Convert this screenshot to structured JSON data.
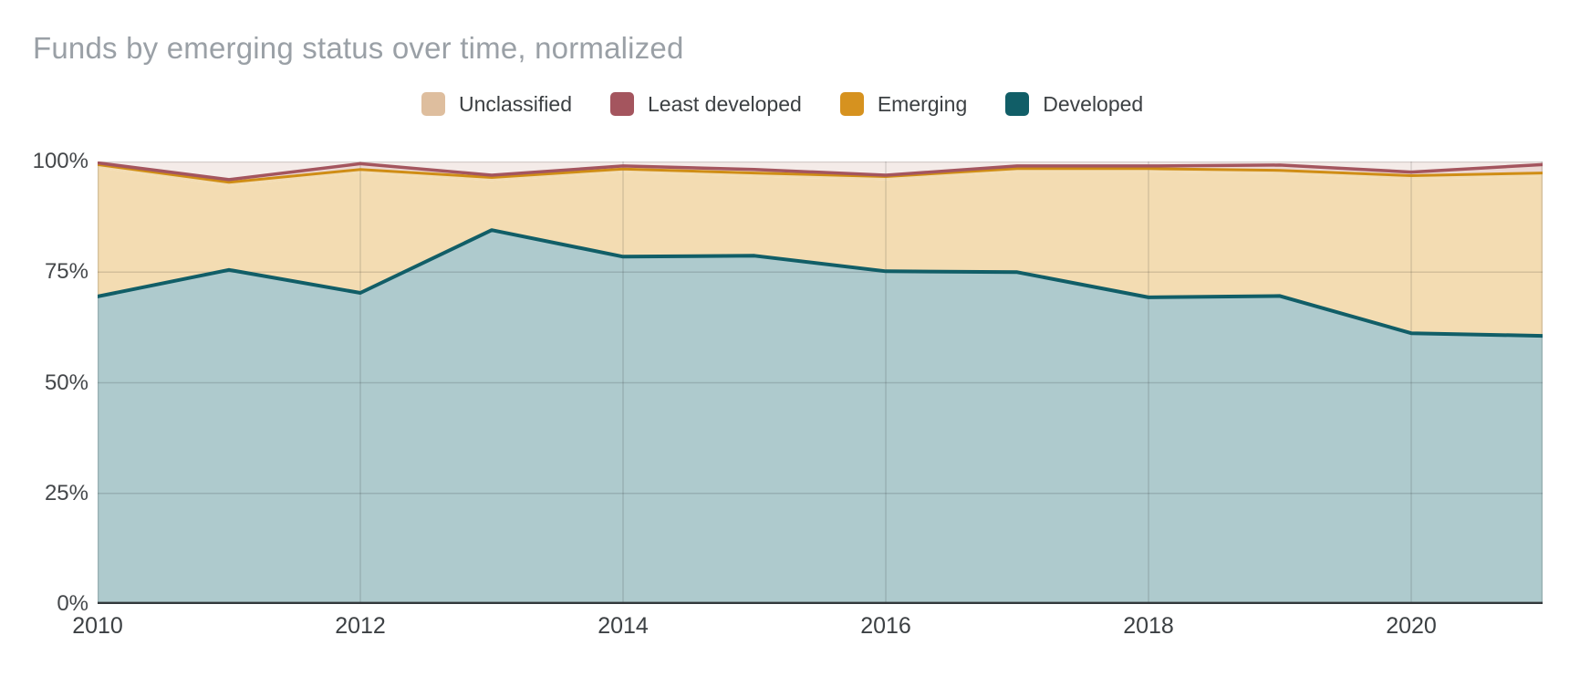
{
  "title": "Funds by emerging status over time, normalized",
  "legend": {
    "items": [
      {
        "label": "Unclassified",
        "color": "#debe9e"
      },
      {
        "label": "Least developed",
        "color": "#a4555e"
      },
      {
        "label": "Emerging",
        "color": "#d6921f"
      },
      {
        "label": "Developed",
        "color": "#115e67"
      }
    ]
  },
  "axes": {
    "y_ticks": [
      "0%",
      "25%",
      "50%",
      "75%",
      "100%"
    ],
    "x_ticks": [
      "2010",
      "2012",
      "2014",
      "2016",
      "2018",
      "2020"
    ]
  },
  "chart_data": {
    "type": "area",
    "stacking": "normalized",
    "title": "Funds by emerging status over time, normalized",
    "xlabel": "",
    "ylabel": "",
    "ylim": [
      0,
      100
    ],
    "x_range": [
      2010,
      2021
    ],
    "grid": true,
    "legend_position": "top",
    "x": [
      2010,
      2011,
      2012,
      2013,
      2014,
      2015,
      2016,
      2017,
      2018,
      2019,
      2020,
      2021
    ],
    "series": [
      {
        "name": "Developed",
        "color": "#115e67",
        "fill": "#aecacd",
        "line_width": 4,
        "values": [
          69.5,
          75.5,
          70.3,
          84.5,
          78.5,
          78.7,
          75.2,
          75.0,
          69.3,
          69.6,
          61.2,
          60.6
        ]
      },
      {
        "name": "Unclassified",
        "color": "#debe9e",
        "fill": "#f3dcb2",
        "line_width": 0,
        "values": [
          29.0,
          19.0,
          27.1,
          11.1,
          19.0,
          17.9,
          20.6,
          22.6,
          28.3,
          27.6,
          34.8,
          36.0
        ]
      },
      {
        "name": "Emerging",
        "color": "#cf8d15",
        "fill": "#f3dcb2",
        "line_width": 3,
        "values": [
          0.8,
          0.8,
          0.8,
          0.8,
          0.8,
          0.8,
          0.8,
          0.8,
          0.8,
          0.8,
          0.8,
          0.8
        ]
      },
      {
        "name": "Least developed",
        "color": "#a4555e",
        "fill": "#ecd8d2",
        "line_width": 3.5,
        "values": [
          0.4,
          0.6,
          1.3,
          0.5,
          0.7,
          0.8,
          0.3,
          0.6,
          0.6,
          1.2,
          0.8,
          1.9
        ]
      }
    ],
    "remainder_fill": "#f4ebe8",
    "gridline_rgba": "rgba(0,0,0,0.13)",
    "baseline_color": "#33383b"
  }
}
